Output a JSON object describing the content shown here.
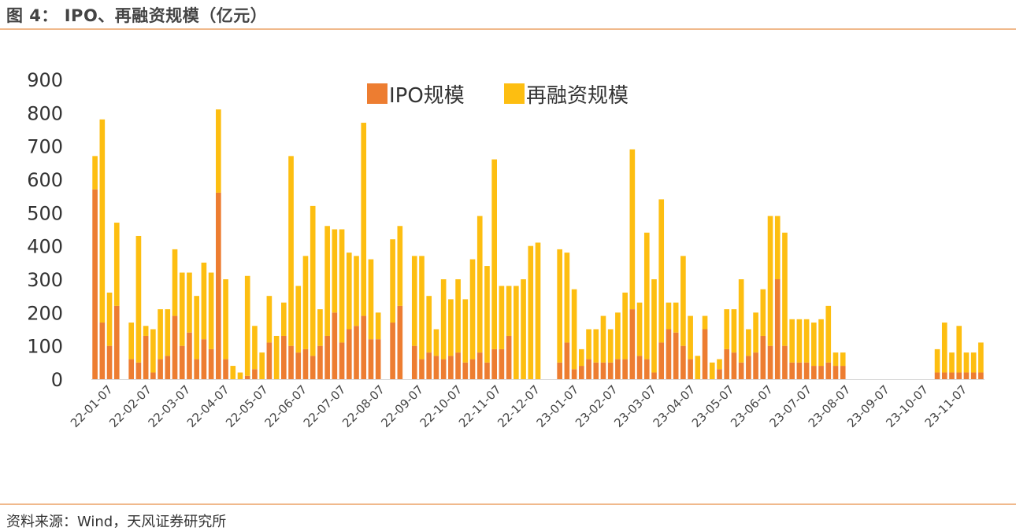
{
  "header": {
    "title": "图 4：  IPO、再融资规模（亿元）"
  },
  "footer": {
    "source": "资料来源：Wind，天风证券研究所"
  },
  "colors": {
    "ipo": "#ed7d31",
    "refinance": "#fdbe11",
    "rule": "#f0b98c"
  },
  "chart_data": {
    "type": "bar",
    "stacked": true,
    "title": "",
    "xlabel": "",
    "ylabel": "",
    "ylim": [
      0,
      900
    ],
    "yticks": [
      0,
      100,
      200,
      300,
      400,
      500,
      600,
      700,
      800,
      900
    ],
    "legend": {
      "placement": "top-center"
    },
    "xtick_labels": [
      "22-01-07",
      "22-02-07",
      "22-03-07",
      "22-04-07",
      "22-05-07",
      "22-06-07",
      "22-07-07",
      "22-08-07",
      "22-09-07",
      "22-10-07",
      "22-11-07",
      "22-12-07",
      "23-01-07",
      "23-02-07",
      "23-03-07",
      "23-04-07",
      "23-05-07",
      "23-06-07",
      "23-07-07",
      "23-08-07",
      "23-09-07",
      "23-10-07",
      "23-11-07"
    ],
    "series": [
      {
        "name": "IPO规模",
        "values": [
          570,
          170,
          100,
          220,
          0,
          60,
          50,
          130,
          20,
          60,
          70,
          190,
          100,
          140,
          60,
          120,
          90,
          560,
          60,
          0,
          0,
          10,
          30,
          0,
          110,
          0,
          130,
          100,
          80,
          90,
          70,
          100,
          130,
          200,
          110,
          150,
          160,
          190,
          120,
          120,
          0,
          170,
          220,
          0,
          100,
          60,
          80,
          70,
          60,
          70,
          80,
          50,
          60,
          80,
          50,
          90,
          90,
          130,
          0,
          0,
          0,
          0,
          0,
          0,
          50,
          110,
          30,
          40,
          60,
          50,
          50,
          50,
          60,
          60,
          210,
          70,
          60,
          20,
          110,
          150,
          140,
          100,
          60,
          0,
          150,
          0,
          30,
          90,
          80,
          50,
          70,
          80,
          130,
          100,
          300,
          100,
          50,
          50,
          50,
          40,
          40,
          50,
          40,
          40,
          0,
          0,
          0,
          0,
          0,
          0,
          0,
          0,
          0,
          0,
          0,
          0,
          20,
          20,
          20,
          20,
          20,
          20,
          20
        ]
      },
      {
        "name": "再融资规模",
        "values": [
          100,
          610,
          160,
          250,
          0,
          110,
          380,
          30,
          130,
          150,
          140,
          200,
          220,
          180,
          190,
          230,
          230,
          250,
          240,
          40,
          20,
          300,
          130,
          80,
          140,
          130,
          100,
          570,
          200,
          280,
          450,
          110,
          330,
          250,
          340,
          230,
          210,
          580,
          240,
          80,
          0,
          250,
          240,
          0,
          270,
          310,
          170,
          80,
          240,
          170,
          220,
          190,
          300,
          410,
          290,
          570,
          190,
          150,
          280,
          300,
          400,
          410,
          0,
          0,
          340,
          270,
          240,
          50,
          90,
          100,
          140,
          100,
          140,
          200,
          480,
          160,
          380,
          280,
          430,
          80,
          90,
          270,
          130,
          70,
          40,
          50,
          30,
          120,
          130,
          250,
          80,
          120,
          140,
          390,
          190,
          340,
          130,
          130,
          130,
          130,
          140,
          170,
          40,
          40,
          0,
          0,
          0,
          0,
          0,
          0,
          0,
          0,
          0,
          0,
          0,
          0,
          70,
          150,
          60,
          140,
          60,
          60,
          90
        ]
      }
    ]
  }
}
